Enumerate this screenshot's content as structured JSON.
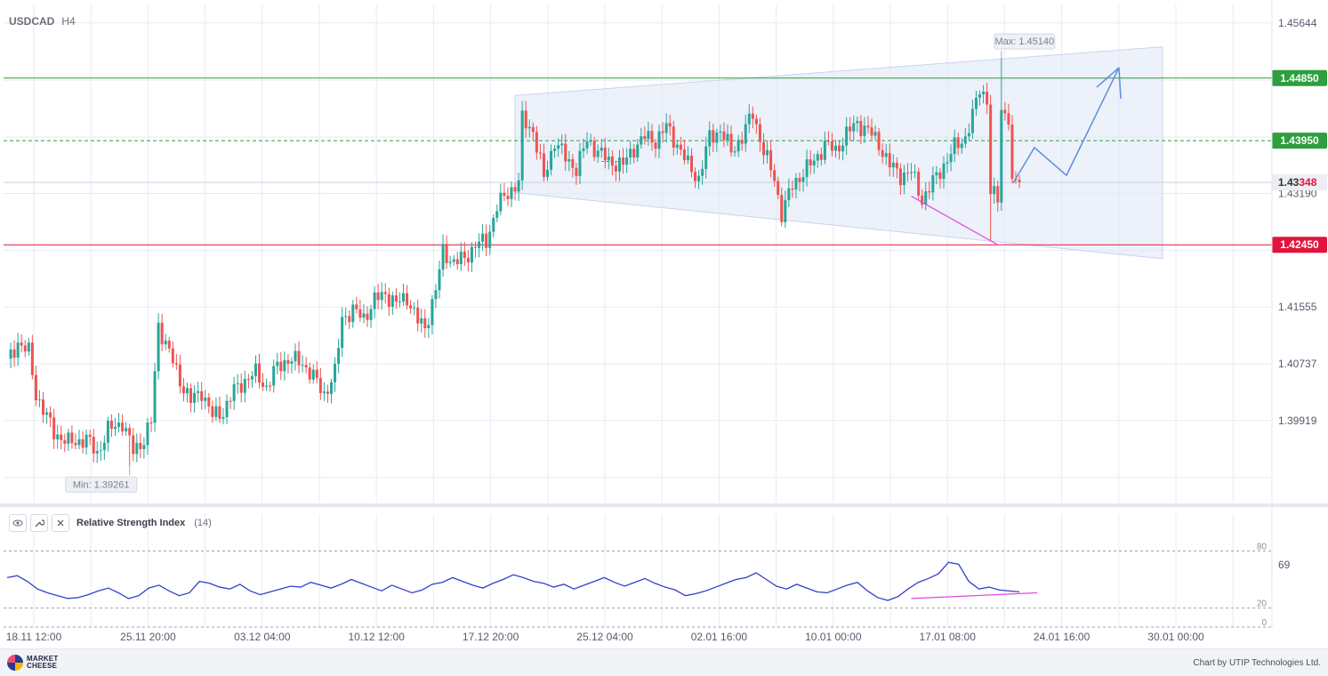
{
  "header": {
    "symbol": "USDCAD",
    "timeframe": "H4"
  },
  "indicator": {
    "title": "Relative Strength Index",
    "param": "(14)",
    "value_label": "69",
    "levels": [
      "80",
      "20",
      "0"
    ]
  },
  "footer": {
    "logo_line1": "MARKET",
    "logo_line2": "CHEESE",
    "credit": "Chart by UTIP Technologies Ltd."
  },
  "colors": {
    "bull": "#26a69a",
    "bear": "#ef5350",
    "resistance": "#2e9e3e",
    "support": "#e0143c",
    "forecast": "#5b8fd9",
    "channel": "#dfe7f7",
    "rsi": "#3340c9",
    "divergence": "#e048e0"
  },
  "icons": [
    "eye-icon",
    "wrench-icon",
    "close-icon"
  ],
  "chart_data": {
    "type": "candlestick",
    "symbol": "USDCAD",
    "timeframe": "H4",
    "y_ticks": [
      "1.45644",
      "1.43190",
      "1.41555",
      "1.40737",
      "1.39919"
    ],
    "x_ticks": [
      "18.11 12:00",
      "25.11 20:00",
      "03.12 04:00",
      "10.12 12:00",
      "17.12 20:00",
      "25.12 04:00",
      "02.01 16:00",
      "10.01 00:00",
      "17.01 08:00",
      "24.01 16:00",
      "30.01 00:00"
    ],
    "ylim": [
      1.3874,
      1.4591
    ],
    "levels": [
      {
        "value": 1.4485,
        "label": "1.44850",
        "style": "solid",
        "color": "#2e9e3e"
      },
      {
        "value": 1.4395,
        "label": "1.43950",
        "style": "dashed",
        "color": "#2e9e3e"
      },
      {
        "value": 1.4245,
        "label": "1.42450",
        "style": "solid",
        "color": "#e0143c"
      }
    ],
    "current_price": {
      "value": 1.43348,
      "label_main": "1.43",
      "label_accent": "348"
    },
    "max": {
      "label": "Max: 1.45140",
      "value": 1.4514
    },
    "min": {
      "label": "Min: 1.39261",
      "value": 1.39261
    },
    "key_closes": [
      [
        0,
        1.4075
      ],
      [
        3,
        1.4105
      ],
      [
        6,
        1.409
      ],
      [
        8,
        1.403
      ],
      [
        13,
        1.3975
      ],
      [
        17,
        1.396
      ],
      [
        22,
        1.3965
      ],
      [
        25,
        1.3945
      ],
      [
        28,
        1.3978
      ],
      [
        32,
        1.399
      ],
      [
        35,
        1.3948
      ],
      [
        38,
        1.3965
      ],
      [
        40,
        1.399
      ],
      [
        42,
        1.413
      ],
      [
        45,
        1.409
      ],
      [
        48,
        1.405
      ],
      [
        51,
        1.402
      ],
      [
        54,
        1.4035
      ],
      [
        57,
        1.3998
      ],
      [
        60,
        1.4005
      ],
      [
        63,
        1.4035
      ],
      [
        66,
        1.405
      ],
      [
        69,
        1.406
      ],
      [
        72,
        1.404
      ],
      [
        75,
        1.407
      ],
      [
        78,
        1.408
      ],
      [
        82,
        1.4075
      ],
      [
        85,
        1.4055
      ],
      [
        88,
        1.403
      ],
      [
        91,
        1.406
      ],
      [
        93,
        1.414
      ],
      [
        96,
        1.415
      ],
      [
        99,
        1.414
      ],
      [
        102,
        1.4165
      ],
      [
        105,
        1.4175
      ],
      [
        108,
        1.416
      ],
      [
        111,
        1.417
      ],
      [
        114,
        1.4135
      ],
      [
        116,
        1.4125
      ],
      [
        119,
        1.418
      ],
      [
        121,
        1.4235
      ],
      [
        124,
        1.422
      ],
      [
        127,
        1.4225
      ],
      [
        130,
        1.4245
      ],
      [
        133,
        1.425
      ],
      [
        136,
        1.43
      ],
      [
        139,
        1.432
      ],
      [
        142,
        1.4335
      ],
      [
        143,
        1.4425
      ],
      [
        146,
        1.441
      ],
      [
        149,
        1.434
      ],
      [
        152,
        1.4395
      ],
      [
        155,
        1.437
      ],
      [
        158,
        1.4355
      ],
      [
        161,
        1.4395
      ],
      [
        164,
        1.438
      ],
      [
        167,
        1.4365
      ],
      [
        171,
        1.436
      ],
      [
        174,
        1.4385
      ],
      [
        177,
        1.44
      ],
      [
        180,
        1.4395
      ],
      [
        183,
        1.4415
      ],
      [
        186,
        1.439
      ],
      [
        189,
        1.436
      ],
      [
        192,
        1.434
      ],
      [
        195,
        1.44
      ],
      [
        198,
        1.441
      ],
      [
        201,
        1.438
      ],
      [
        204,
        1.44
      ],
      [
        207,
        1.4435
      ],
      [
        210,
        1.438
      ],
      [
        213,
        1.434
      ],
      [
        215,
        1.429
      ],
      [
        218,
        1.433
      ],
      [
        221,
        1.435
      ],
      [
        224,
        1.4365
      ],
      [
        227,
        1.439
      ],
      [
        230,
        1.438
      ],
      [
        233,
        1.4405
      ],
      [
        236,
        1.442
      ],
      [
        239,
        1.441
      ],
      [
        242,
        1.439
      ],
      [
        245,
        1.436
      ],
      [
        248,
        1.4345
      ],
      [
        251,
        1.435
      ],
      [
        254,
        1.431
      ],
      [
        257,
        1.4335
      ],
      [
        260,
        1.436
      ],
      [
        263,
        1.4385
      ],
      [
        266,
        1.44
      ],
      [
        268,
        1.443
      ],
      [
        270,
        1.447
      ],
      [
        272,
        1.4455
      ],
      [
        273,
        1.432
      ],
      [
        275,
        1.431
      ],
      [
        276,
        1.444
      ],
      [
        278,
        1.443
      ],
      [
        279,
        1.433
      ],
      [
        281,
        1.4335
      ]
    ],
    "forecast_path": [
      [
        1.4334,
        "start"
      ],
      [
        1.4385,
        "peak"
      ],
      [
        1.4345,
        "dip"
      ],
      [
        1.45,
        "target"
      ]
    ],
    "channel": {
      "upper": [
        1.446,
        1.453
      ],
      "lower": [
        1.432,
        1.4225
      ]
    },
    "rsi": {
      "period": 14,
      "current": 69,
      "levels": [
        80,
        20,
        0
      ],
      "values": [
        52,
        54,
        48,
        40,
        36,
        33,
        30,
        31,
        34,
        38,
        41,
        36,
        30,
        33,
        41,
        44,
        38,
        33,
        36,
        48,
        46,
        42,
        40,
        45,
        38,
        34,
        37,
        40,
        43,
        42,
        47,
        44,
        41,
        45,
        50,
        46,
        42,
        38,
        44,
        40,
        36,
        39,
        45,
        47,
        52,
        48,
        44,
        41,
        46,
        50,
        55,
        52,
        48,
        46,
        42,
        45,
        40,
        44,
        48,
        52,
        47,
        43,
        47,
        51,
        46,
        42,
        39,
        33,
        35,
        38,
        42,
        46,
        50,
        52,
        57,
        50,
        43,
        40,
        45,
        41,
        37,
        36,
        40,
        44,
        47,
        38,
        31,
        28,
        32,
        40,
        47,
        51,
        56,
        68,
        66,
        48,
        40,
        42,
        39,
        38,
        37
      ]
    },
    "divergence": {
      "price": [
        1.4315,
        1.4245
      ],
      "rsi": [
        30,
        36
      ]
    }
  }
}
